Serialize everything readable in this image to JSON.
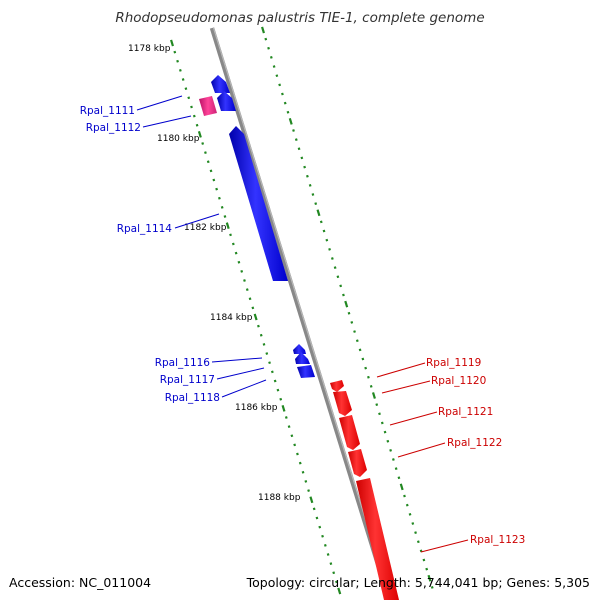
{
  "title": "Rhodopseudomonas palustris TIE-1, complete genome",
  "footer": {
    "accession": "Accession: NC_011004",
    "topology": "Topology: circular; Length: 5,744,041 bp; Genes: 5,305"
  },
  "kbp_labels": [
    "1178 kbp",
    "1180 kbp",
    "1182 kbp",
    "1184 kbp",
    "1186 kbp",
    "1188 kbp"
  ],
  "genes_left": [
    "Rpal_1111",
    "Rpal_1112",
    "Rpal_1114",
    "Rpal_1116",
    "Rpal_1117",
    "Rpal_1118"
  ],
  "genes_right": [
    "Rpal_1119",
    "Rpal_1120",
    "Rpal_1121",
    "Rpal_1122",
    "Rpal_1123"
  ],
  "colors": {
    "backbone": "#888888",
    "forward": "#ff0000",
    "reverse": "#0000ee",
    "rna": "#ee2288",
    "ticks": "#228822",
    "left_label": "#0000cc",
    "right_label": "#cc0000"
  }
}
